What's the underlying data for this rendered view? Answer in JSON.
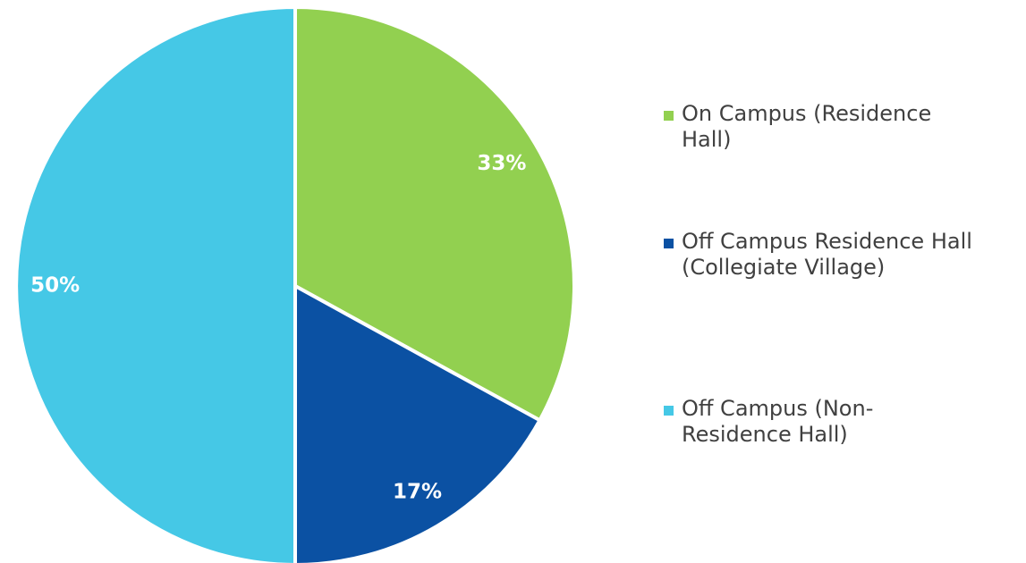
{
  "chart_data": {
    "type": "pie",
    "categories": [
      "On Campus (Residence Hall)",
      "Off Campus Residence Hall (Collegiate Village)",
      "Off Campus (Non-Residence Hall)"
    ],
    "values": [
      33,
      17,
      50
    ],
    "value_labels": [
      "33%",
      "17%",
      "50%"
    ],
    "colors": [
      "#92d050",
      "#0b51a3",
      "#45c8e6"
    ],
    "legend": "right"
  }
}
